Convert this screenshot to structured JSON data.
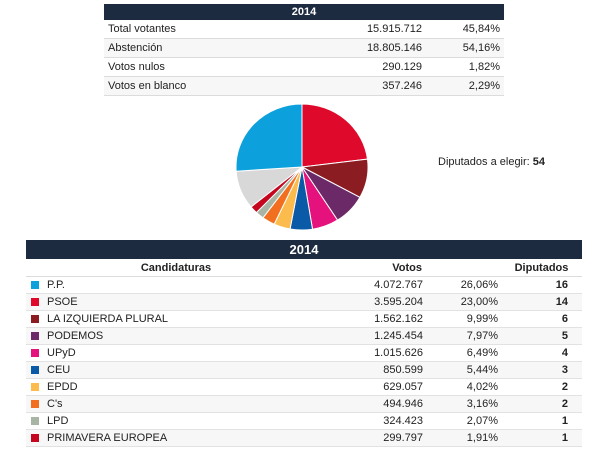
{
  "summary": {
    "year": "2014",
    "rows": [
      {
        "label": "Total votantes",
        "value": "15.915.712",
        "pct": "45,84%"
      },
      {
        "label": "Abstención",
        "value": "18.805.146",
        "pct": "54,16%"
      },
      {
        "label": "Votos nulos",
        "value": "290.129",
        "pct": "1,82%"
      },
      {
        "label": "Votos en blanco",
        "value": "357.246",
        "pct": "2,29%"
      }
    ]
  },
  "seats_info": {
    "label": "Diputados a elegir:",
    "value": "54"
  },
  "results": {
    "year": "2014",
    "headers": {
      "party": "Candidaturas",
      "votes": "Votos",
      "seats": "Diputados"
    },
    "rows": [
      {
        "party": "P.P.",
        "votes": "4.072.767",
        "pct": "26,06%",
        "seats": "16",
        "color": "#0ca0dc"
      },
      {
        "party": "PSOE",
        "votes": "3.595.204",
        "pct": "23,00%",
        "seats": "14",
        "color": "#df0a2b"
      },
      {
        "party": "LA IZQUIERDA PLURAL",
        "votes": "1.562.162",
        "pct": "9,99%",
        "seats": "6",
        "color": "#8b1c21"
      },
      {
        "party": "PODEMOS",
        "votes": "1.245.454",
        "pct": "7,97%",
        "seats": "5",
        "color": "#6b2a67"
      },
      {
        "party": "UPyD",
        "votes": "1.015.626",
        "pct": "6,49%",
        "seats": "4",
        "color": "#e5127d"
      },
      {
        "party": "CEU",
        "votes": "850.599",
        "pct": "5,44%",
        "seats": "3",
        "color": "#0a5aa8"
      },
      {
        "party": "EPDD",
        "votes": "629.057",
        "pct": "4,02%",
        "seats": "2",
        "color": "#fbbc4d"
      },
      {
        "party": "C's",
        "votes": "494.946",
        "pct": "3,16%",
        "seats": "2",
        "color": "#f36f20"
      },
      {
        "party": "LPD",
        "votes": "324.423",
        "pct": "2,07%",
        "seats": "1",
        "color": "#a8b5a4"
      },
      {
        "party": "PRIMAVERA EUROPEA",
        "votes": "299.797",
        "pct": "1,91%",
        "seats": "1",
        "color": "#c5061f"
      }
    ]
  },
  "chart_data": {
    "type": "pie",
    "categories": [
      "P.P.",
      "PSOE",
      "LA IZQUIERDA PLURAL",
      "PODEMOS",
      "UPyD",
      "CEU",
      "EPDD",
      "C's",
      "LPD",
      "PRIMAVERA EUROPEA"
    ],
    "values": [
      26.06,
      23.0,
      9.99,
      7.97,
      6.49,
      5.44,
      4.02,
      3.16,
      2.07,
      1.91
    ],
    "colors": [
      "#0ca0dc",
      "#df0a2b",
      "#8b1c21",
      "#6b2a67",
      "#e5127d",
      "#0a5aa8",
      "#fbbc4d",
      "#f36f20",
      "#a8b5a4",
      "#c5061f"
    ]
  }
}
